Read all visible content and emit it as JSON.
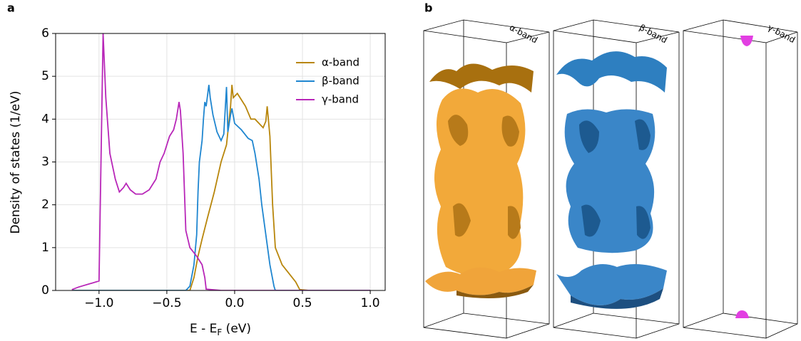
{
  "panel_a_label": "a",
  "chart_data": {
    "type": "line",
    "xlabel": [
      "E - E",
      "F",
      " (eV)"
    ],
    "ylabel": "Density of states (1/eV)",
    "xlim": [
      -1.32,
      1.11
    ],
    "ylim": [
      0,
      6
    ],
    "xticks": [
      {
        "value": -1.0,
        "label": "−1.0"
      },
      {
        "value": -0.5,
        "label": "−0.5"
      },
      {
        "value": 0.0,
        "label": "0.0"
      },
      {
        "value": 0.5,
        "label": "0.5"
      },
      {
        "value": 1.0,
        "label": "1.0"
      }
    ],
    "yticks": [
      0,
      1,
      2,
      3,
      4,
      5,
      6
    ],
    "grid": true,
    "legend": "upper right",
    "series": [
      {
        "name": "α-band",
        "color": "#b8860b",
        "x": [
          -1.2,
          -0.33,
          -0.3,
          -0.27,
          -0.24,
          -0.2,
          -0.15,
          -0.1,
          -0.06,
          -0.03,
          -0.02,
          -0.01,
          0.02,
          0.05,
          0.08,
          0.12,
          0.15,
          0.18,
          0.21,
          0.23,
          0.24,
          0.26,
          0.28,
          0.3,
          0.35,
          0.4,
          0.45,
          0.48,
          0.55,
          1.0
        ],
        "values": [
          0,
          0,
          0.3,
          0.8,
          1.2,
          1.7,
          2.3,
          3.0,
          3.4,
          4.3,
          4.8,
          4.5,
          4.6,
          4.45,
          4.3,
          4.0,
          4.0,
          3.9,
          3.8,
          3.95,
          4.3,
          3.6,
          2.0,
          1.0,
          0.6,
          0.4,
          0.2,
          0.02,
          0,
          0
        ]
      },
      {
        "name": "β-band",
        "color": "#1f86d0",
        "x": [
          -1.2,
          -0.36,
          -0.33,
          -0.3,
          -0.28,
          -0.27,
          -0.26,
          -0.24,
          -0.23,
          -0.22,
          -0.21,
          -0.19,
          -0.18,
          -0.16,
          -0.13,
          -0.1,
          -0.08,
          -0.06,
          -0.05,
          -0.03,
          -0.02,
          0.0,
          0.05,
          0.1,
          0.13,
          0.15,
          0.18,
          0.2,
          0.23,
          0.26,
          0.29,
          0.3,
          1.0
        ],
        "values": [
          0,
          0,
          0.1,
          0.6,
          1.3,
          2.3,
          3.0,
          3.5,
          4.0,
          4.4,
          4.3,
          4.8,
          4.5,
          4.1,
          3.7,
          3.5,
          3.65,
          4.75,
          3.7,
          4.1,
          4.25,
          3.9,
          3.75,
          3.55,
          3.5,
          3.2,
          2.6,
          2.0,
          1.3,
          0.6,
          0.1,
          0,
          0
        ]
      },
      {
        "name": "γ-band",
        "color": "#b826b8",
        "x": [
          -1.2,
          -1.15,
          -1.0,
          -0.97,
          -0.95,
          -0.92,
          -0.88,
          -0.85,
          -0.82,
          -0.8,
          -0.77,
          -0.73,
          -0.68,
          -0.63,
          -0.58,
          -0.55,
          -0.52,
          -0.48,
          -0.45,
          -0.43,
          -0.41,
          -0.4,
          -0.38,
          -0.36,
          -0.33,
          -0.28,
          -0.24,
          -0.22,
          -0.21,
          -0.1,
          1.0
        ],
        "values": [
          0.02,
          0.08,
          0.22,
          6,
          4.5,
          3.2,
          2.6,
          2.3,
          2.4,
          2.5,
          2.35,
          2.25,
          2.25,
          2.35,
          2.6,
          3.0,
          3.2,
          3.6,
          3.75,
          4.0,
          4.4,
          4.2,
          3.2,
          1.4,
          1.0,
          0.8,
          0.6,
          0.3,
          0.03,
          0,
          0
        ]
      }
    ]
  },
  "panel_b": {
    "label": "b",
    "titles": [
      "α-band",
      "β-band",
      "γ-band"
    ]
  }
}
